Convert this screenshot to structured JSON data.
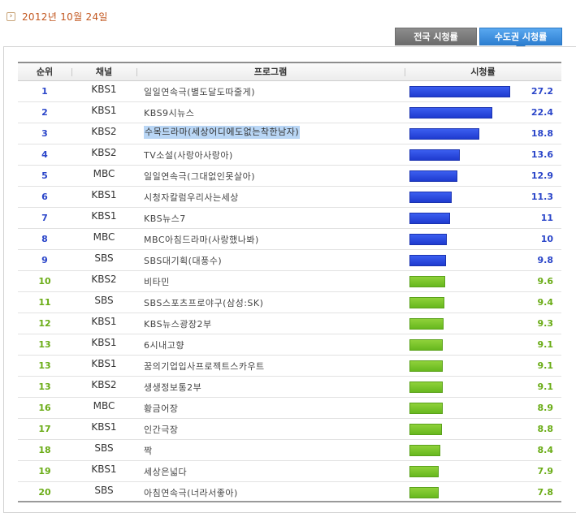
{
  "date": {
    "text": "2012년 10월 24일"
  },
  "tabs": {
    "national": "전국 시청률",
    "metro": "수도권 시청률"
  },
  "header": {
    "rank": "순위",
    "channel": "채널",
    "program": "프로그램",
    "rating": "시청률"
  },
  "max_rating": 27.2,
  "rows": [
    {
      "rank": "1",
      "channel": "KBS1",
      "program": "일일연속극(별도달도따줄게)",
      "rating": "27.2",
      "value": 27.2,
      "color": "blue"
    },
    {
      "rank": "2",
      "channel": "KBS1",
      "program": "KBS9시뉴스",
      "rating": "22.4",
      "value": 22.4,
      "color": "blue"
    },
    {
      "rank": "3",
      "channel": "KBS2",
      "program": "수목드라마(세상어디에도없는착한남자)",
      "rating": "18.8",
      "value": 18.8,
      "color": "blue",
      "highlight": true
    },
    {
      "rank": "4",
      "channel": "KBS2",
      "program": "TV소설(사랑아사랑아)",
      "rating": "13.6",
      "value": 13.6,
      "color": "blue"
    },
    {
      "rank": "5",
      "channel": "MBC",
      "program": "일일연속극(그대없인못살아)",
      "rating": "12.9",
      "value": 12.9,
      "color": "blue"
    },
    {
      "rank": "6",
      "channel": "KBS1",
      "program": "시청자칼럼우리사는세상",
      "rating": "11.3",
      "value": 11.3,
      "color": "blue"
    },
    {
      "rank": "7",
      "channel": "KBS1",
      "program": "KBS뉴스7",
      "rating": "11",
      "value": 11,
      "color": "blue"
    },
    {
      "rank": "8",
      "channel": "MBC",
      "program": "MBC아침드라마(사랑했나봐)",
      "rating": "10",
      "value": 10,
      "color": "blue"
    },
    {
      "rank": "9",
      "channel": "SBS",
      "program": "SBS대기획(대풍수)",
      "rating": "9.8",
      "value": 9.8,
      "color": "blue"
    },
    {
      "rank": "10",
      "channel": "KBS2",
      "program": "비타민",
      "rating": "9.6",
      "value": 9.6,
      "color": "green"
    },
    {
      "rank": "11",
      "channel": "SBS",
      "program": "SBS스포츠프로야구(삼성:SK)",
      "rating": "9.4",
      "value": 9.4,
      "color": "green"
    },
    {
      "rank": "12",
      "channel": "KBS1",
      "program": "KBS뉴스광장2부",
      "rating": "9.3",
      "value": 9.3,
      "color": "green"
    },
    {
      "rank": "13",
      "channel": "KBS1",
      "program": "6시내고향",
      "rating": "9.1",
      "value": 9.1,
      "color": "green"
    },
    {
      "rank": "13",
      "channel": "KBS1",
      "program": "꿈의기업입사프로젝트스카우트",
      "rating": "9.1",
      "value": 9.1,
      "color": "green"
    },
    {
      "rank": "13",
      "channel": "KBS2",
      "program": "생생정보통2부",
      "rating": "9.1",
      "value": 9.1,
      "color": "green"
    },
    {
      "rank": "16",
      "channel": "MBC",
      "program": "황금어장",
      "rating": "8.9",
      "value": 8.9,
      "color": "green"
    },
    {
      "rank": "17",
      "channel": "KBS1",
      "program": "인간극장",
      "rating": "8.8",
      "value": 8.8,
      "color": "green"
    },
    {
      "rank": "18",
      "channel": "SBS",
      "program": "짝",
      "rating": "8.4",
      "value": 8.4,
      "color": "green"
    },
    {
      "rank": "19",
      "channel": "KBS1",
      "program": "세상은넓다",
      "rating": "7.9",
      "value": 7.9,
      "color": "green"
    },
    {
      "rank": "20",
      "channel": "SBS",
      "program": "아침연속극(너라서좋아)",
      "rating": "7.8",
      "value": 7.8,
      "color": "green"
    }
  ]
}
